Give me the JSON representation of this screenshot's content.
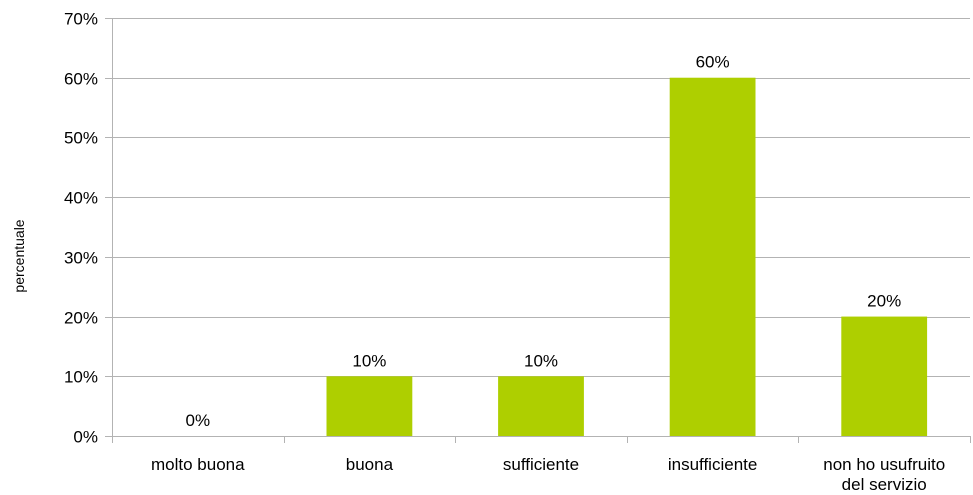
{
  "chart_data": {
    "type": "bar",
    "title": "",
    "xlabel": "",
    "ylabel": "percentuale",
    "categories": [
      "molto buona",
      "buona",
      "sufficiente",
      "insufficiente",
      "non ho usufruito del servizio"
    ],
    "category_lines": [
      [
        "molto buona"
      ],
      [
        "buona"
      ],
      [
        "sufficiente"
      ],
      [
        "insufficiente"
      ],
      [
        "non ho usufruito",
        "del servizio"
      ]
    ],
    "values": [
      0,
      10,
      10,
      60,
      20
    ],
    "data_labels": [
      "0%",
      "10%",
      "10%",
      "60%",
      "20%"
    ],
    "ylim": [
      0,
      70
    ],
    "yticks": [
      0,
      10,
      20,
      30,
      40,
      50,
      60,
      70
    ],
    "ytick_labels": [
      "0%",
      "10%",
      "20%",
      "30%",
      "40%",
      "50%",
      "60%",
      "70%"
    ],
    "bar_color": "#aecf00",
    "grid": true,
    "legend": "none"
  }
}
